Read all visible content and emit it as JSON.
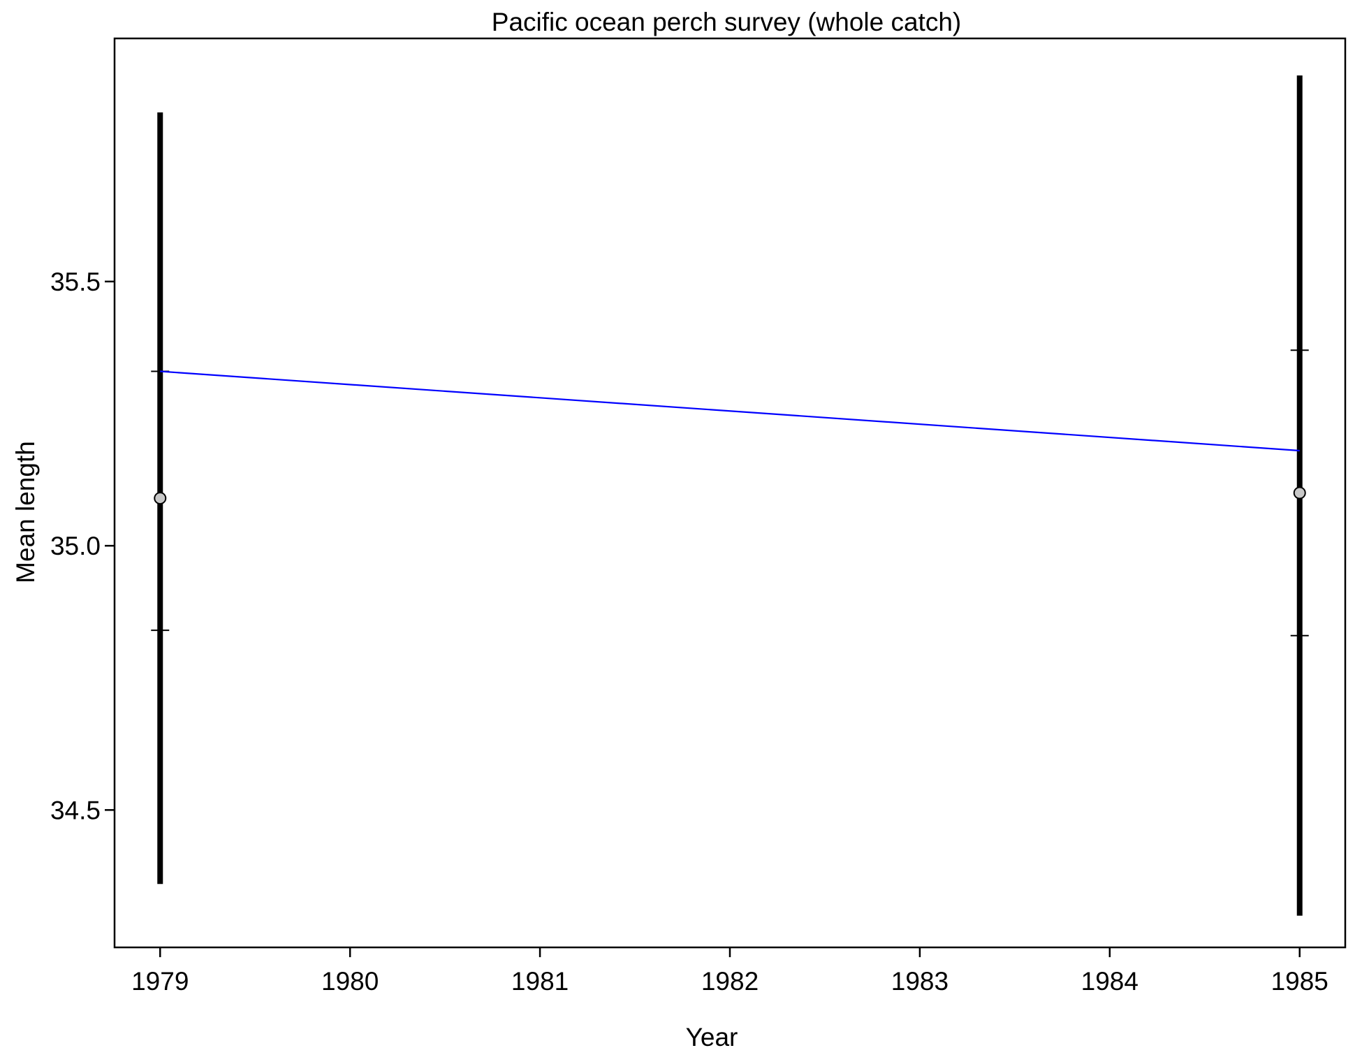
{
  "chart_data": {
    "type": "scatter",
    "title": "Pacific ocean perch survey (whole catch)",
    "xlabel": "Year",
    "ylabel": "Mean length",
    "xlim": [
      1978.76,
      1985.24
    ],
    "ylim": [
      34.24,
      35.96
    ],
    "x_ticks": [
      "1979",
      "1980",
      "1981",
      "1982",
      "1983",
      "1984",
      "1985"
    ],
    "y_ticks": [
      "34.5",
      "35.0",
      "35.5"
    ],
    "x_tick_values": [
      1979,
      1980,
      1981,
      1982,
      1983,
      1984,
      1985
    ],
    "y_tick_values": [
      34.5,
      35.0,
      35.5
    ],
    "grid": false,
    "observed": {
      "x": [
        1979,
        1985
      ],
      "mean": [
        35.09,
        35.1
      ],
      "ci_low": [
        34.36,
        34.3
      ],
      "ci_high": [
        35.82,
        35.89
      ],
      "inner_low": [
        34.84,
        34.83
      ],
      "inner_high": [
        35.33,
        35.37
      ]
    },
    "fitted": {
      "x": [
        1979,
        1985
      ],
      "y": [
        35.33,
        35.18
      ]
    },
    "colors": {
      "fit_line": "#0000ff",
      "error_bar": "#000000",
      "point_fill": "#c8c8c8"
    }
  }
}
